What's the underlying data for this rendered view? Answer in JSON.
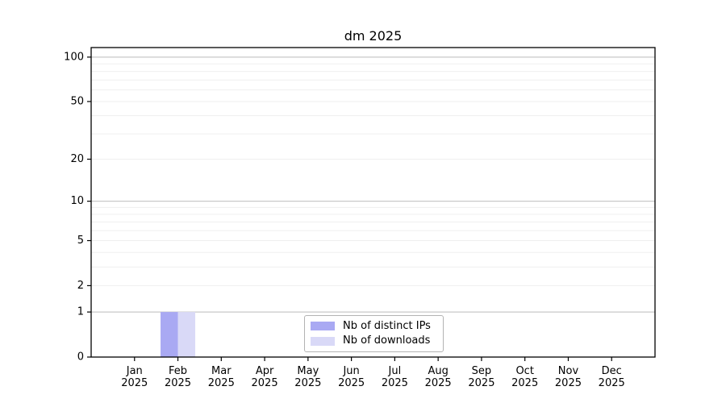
{
  "chart_data": {
    "type": "bar",
    "title": "dm 2025",
    "x_categories": [
      "Jan",
      "Feb",
      "Mar",
      "Apr",
      "May",
      "Jun",
      "Jul",
      "Aug",
      "Sep",
      "Oct",
      "Nov",
      "Dec"
    ],
    "x_year": "2025",
    "series": [
      {
        "name": "Nb of distinct IPs",
        "color": "#a9a9f3",
        "values": [
          0,
          1,
          0,
          0,
          0,
          0,
          0,
          0,
          0,
          0,
          0,
          0
        ]
      },
      {
        "name": "Nb of downloads",
        "color": "#d9d9f7",
        "values": [
          0,
          1,
          0,
          0,
          0,
          0,
          0,
          0,
          0,
          0,
          0,
          0
        ]
      }
    ],
    "y_scale": "log1p",
    "y_ticks": [
      100,
      50,
      20,
      10,
      5,
      2,
      1,
      0
    ],
    "ylim": [
      0,
      116
    ],
    "grid": {
      "major_values": [
        1,
        10,
        100
      ],
      "minor_values": [
        2,
        3,
        4,
        5,
        6,
        7,
        8,
        9,
        20,
        30,
        40,
        50,
        60,
        70,
        80,
        90
      ],
      "major_color": "#c9c9c9",
      "minor_color": "#efefef"
    },
    "axis_color": "#000000",
    "legend_position": "lower center"
  }
}
